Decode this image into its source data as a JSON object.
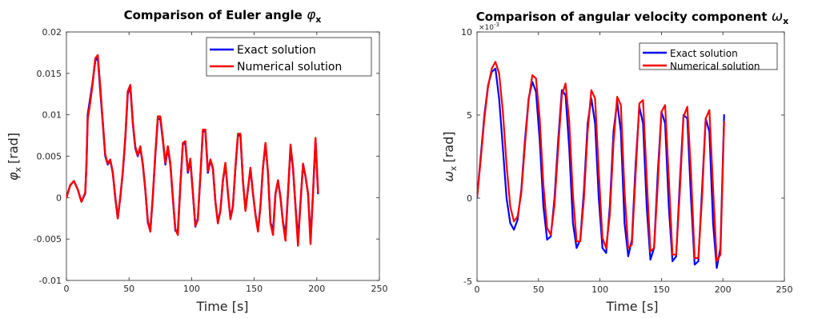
{
  "chart_data": [
    {
      "type": "line",
      "title": "Comparison of Euler angle",
      "title_symbol": "φ",
      "title_sub": "x",
      "xlabel": "Time [s]",
      "ylabel": "[rad]",
      "ylabel_symbol": "φ",
      "ylabel_sub": "x",
      "xlim": [
        0,
        250
      ],
      "ylim": [
        -0.01,
        0.02
      ],
      "xticks": [
        0,
        50,
        100,
        150,
        200,
        250
      ],
      "xtick_labels": [
        "0",
        "50",
        "100",
        "150",
        "200",
        "250"
      ],
      "yticks": [
        -0.01,
        -0.005,
        0,
        0.005,
        0.01,
        0.015,
        0.02
      ],
      "ytick_labels": [
        "-0.01",
        "-0.005",
        "0",
        "0.005",
        "0.01",
        "0.015",
        "0.02"
      ],
      "legend_position": "top-right",
      "series": [
        {
          "name": "Exact solution",
          "color": "#0000ff",
          "x": [
            0,
            3,
            6,
            9,
            12,
            15,
            16,
            17,
            19,
            21,
            23,
            25,
            27,
            29,
            31,
            33,
            35,
            37,
            39,
            41,
            43,
            45,
            47,
            49,
            51,
            53,
            55,
            57,
            59,
            61,
            63,
            65,
            67,
            69,
            71,
            73,
            75,
            77,
            79,
            81,
            83,
            85,
            87,
            89,
            91,
            93,
            95,
            97,
            99,
            101,
            103,
            105,
            107,
            109,
            111,
            113,
            115,
            117,
            119,
            121,
            123,
            125,
            127,
            129,
            131,
            133,
            135,
            137,
            139,
            141,
            143,
            145,
            147,
            149,
            151,
            153,
            155,
            157,
            159,
            161,
            163,
            165,
            167,
            169,
            171,
            173,
            175,
            177,
            179,
            181,
            183,
            185,
            187,
            189,
            191,
            193,
            195,
            197,
            199,
            201
          ],
          "y": [
            0,
            0.0015,
            0.002,
            0.001,
            -0.0005,
            0.0005,
            0.004,
            0.01,
            0.012,
            0.014,
            0.0165,
            0.017,
            0.013,
            0.009,
            0.005,
            0.004,
            0.0045,
            0.003,
            0.0,
            -0.0025,
            0.0,
            0.003,
            0.007,
            0.0125,
            0.0135,
            0.009,
            0.006,
            0.005,
            0.006,
            0.004,
            0.001,
            -0.003,
            -0.004,
            0.0,
            0.005,
            0.0095,
            0.0095,
            0.007,
            0.004,
            0.006,
            0.004,
            0.0,
            -0.004,
            -0.004,
            0.0015,
            0.0065,
            0.0065,
            0.003,
            0.0045,
            0.0005,
            -0.0035,
            -0.0025,
            0.0025,
            0.008,
            0.008,
            0.003,
            0.0045,
            0.0035,
            -0.0005,
            -0.003,
            -0.0015,
            0.002,
            0.004,
            0.0005,
            -0.0025,
            -0.001,
            0.0035,
            0.0075,
            0.0075,
            0.002,
            -0.0015,
            0.001,
            0.0035,
            0.0005,
            -0.002,
            -0.004,
            -0.001,
            0.0035,
            0.0065,
            0.003,
            -0.003,
            -0.004,
            0.0005,
            0.002,
            0.0,
            -0.003,
            -0.0045,
            0.0005,
            0.006,
            0.0035,
            -0.001,
            -0.005,
            -0.0005,
            0.004,
            0.0025,
            0.0005,
            -0.005,
            0.0005,
            0.007,
            0.0005
          ]
        },
        {
          "name": "Numerical solution",
          "color": "#ff0000",
          "x": [
            0,
            3,
            6,
            9,
            12,
            15,
            16,
            17,
            19,
            21,
            23,
            25,
            27,
            29,
            31,
            33,
            35,
            37,
            39,
            41,
            43,
            45,
            47,
            49,
            51,
            53,
            55,
            57,
            59,
            61,
            63,
            65,
            67,
            69,
            71,
            73,
            75,
            77,
            79,
            81,
            83,
            85,
            87,
            89,
            91,
            93,
            95,
            97,
            99,
            101,
            103,
            105,
            107,
            109,
            111,
            113,
            115,
            117,
            119,
            121,
            123,
            125,
            127,
            129,
            131,
            133,
            135,
            137,
            139,
            141,
            143,
            145,
            147,
            149,
            151,
            153,
            155,
            157,
            159,
            161,
            163,
            165,
            167,
            169,
            171,
            173,
            175,
            177,
            179,
            181,
            183,
            185,
            187,
            189,
            191,
            193,
            195,
            197,
            199,
            201
          ],
          "y": [
            0,
            0.0015,
            0.002,
            0.001,
            -0.0005,
            0.0006,
            0.0038,
            0.0095,
            0.0115,
            0.0138,
            0.0168,
            0.0172,
            0.0135,
            0.0092,
            0.0052,
            0.0041,
            0.0046,
            0.0031,
            0.0001,
            -0.0025,
            0.0001,
            0.0031,
            0.0072,
            0.0128,
            0.0136,
            0.0092,
            0.0062,
            0.0051,
            0.0062,
            0.0041,
            0.0011,
            -0.0028,
            -0.0041,
            0.0002,
            0.0052,
            0.0098,
            0.0098,
            0.0072,
            0.0042,
            0.0062,
            0.0042,
            0.0002,
            -0.0038,
            -0.0045,
            0.0013,
            0.0066,
            0.0068,
            0.0032,
            0.0047,
            0.0006,
            -0.0034,
            -0.0027,
            0.0026,
            0.0082,
            0.0082,
            0.0032,
            0.0046,
            0.0036,
            -0.0004,
            -0.0031,
            -0.0016,
            0.0021,
            0.0042,
            0.0006,
            -0.0026,
            -0.0011,
            0.0036,
            0.0077,
            0.0077,
            0.0021,
            -0.0016,
            0.0011,
            0.0036,
            0.0006,
            -0.0021,
            -0.0041,
            -0.0011,
            0.0036,
            0.0066,
            0.0031,
            -0.0031,
            -0.0045,
            0.0004,
            0.0021,
            0.0001,
            -0.0031,
            -0.0052,
            0.0004,
            0.0064,
            0.0036,
            -0.0011,
            -0.0058,
            -0.0006,
            0.0041,
            0.0026,
            0.0004,
            -0.0056,
            0.0006,
            0.0072,
            0.0006
          ]
        }
      ]
    },
    {
      "type": "line",
      "title": "Comparison of angular velocity component",
      "title_symbol": "ω",
      "title_sub": "x",
      "xlabel": "Time [s]",
      "ylabel": "[rad]",
      "ylabel_symbol": "ω",
      "ylabel_sub": "x",
      "xlim": [
        0,
        250
      ],
      "ylim": [
        -5,
        10
      ],
      "y_exponent_label": "×10",
      "y_exponent": "-3",
      "xticks": [
        0,
        50,
        100,
        150,
        200,
        250
      ],
      "xtick_labels": [
        "0",
        "50",
        "100",
        "150",
        "200",
        "250"
      ],
      "yticks": [
        -5,
        0,
        5,
        10
      ],
      "ytick_labels": [
        "-5",
        "0",
        "5",
        "10"
      ],
      "legend_position": "top-right",
      "series": [
        {
          "name": "Exact solution",
          "color": "#0000ff",
          "x": [
            0,
            3,
            6,
            9,
            12,
            15,
            18,
            21,
            24,
            27,
            30,
            33,
            36,
            39,
            42,
            45,
            48,
            51,
            54,
            57,
            60,
            63,
            66,
            69,
            72,
            75,
            78,
            81,
            84,
            87,
            90,
            93,
            96,
            99,
            102,
            105,
            108,
            111,
            114,
            117,
            120,
            123,
            126,
            129,
            132,
            135,
            138,
            141,
            144,
            147,
            150,
            153,
            156,
            159,
            162,
            165,
            168,
            171,
            174,
            177,
            180,
            183,
            186,
            189,
            192,
            195,
            198,
            201
          ],
          "y": [
            0,
            2.5,
            5.0,
            6.8,
            7.6,
            7.8,
            6.0,
            3.0,
            0.0,
            -1.5,
            -1.9,
            -1.3,
            0.5,
            3.5,
            6.0,
            7.0,
            6.4,
            3.5,
            -0.5,
            -2.5,
            -2.3,
            0.0,
            3.5,
            6.5,
            6.2,
            3.0,
            -1.5,
            -3.0,
            -2.5,
            0.5,
            4.5,
            6.0,
            4.5,
            0.0,
            -3.0,
            -3.3,
            -0.5,
            4.0,
            5.8,
            4.0,
            -1.5,
            -3.5,
            -2.5,
            2.0,
            5.5,
            4.5,
            -0.5,
            -3.7,
            -3.0,
            1.5,
            5.2,
            4.5,
            -0.5,
            -3.8,
            -3.5,
            1.0,
            5.0,
            4.8,
            0.0,
            -4.0,
            -3.8,
            0.5,
            4.8,
            4.0,
            -1.5,
            -4.2,
            -3.0,
            5.0
          ]
        },
        {
          "name": "Numerical solution",
          "color": "#ff0000",
          "x": [
            0,
            3,
            6,
            9,
            12,
            15,
            18,
            21,
            24,
            27,
            30,
            33,
            36,
            39,
            42,
            45,
            48,
            51,
            54,
            57,
            60,
            63,
            66,
            69,
            72,
            75,
            78,
            81,
            84,
            87,
            90,
            93,
            96,
            99,
            102,
            105,
            108,
            111,
            114,
            117,
            120,
            123,
            126,
            129,
            132,
            135,
            138,
            141,
            144,
            147,
            150,
            153,
            156,
            159,
            162,
            165,
            168,
            171,
            174,
            177,
            180,
            183,
            186,
            189,
            192,
            195,
            198,
            201
          ],
          "y": [
            0,
            2.3,
            4.8,
            6.7,
            7.8,
            8.2,
            7.5,
            5.2,
            2.0,
            -0.5,
            -1.4,
            -1.1,
            0.3,
            3.2,
            5.9,
            7.4,
            7.2,
            4.8,
            0.8,
            -1.8,
            -2.2,
            -0.4,
            3.0,
            6.2,
            6.9,
            4.6,
            0.2,
            -2.6,
            -2.6,
            0.0,
            4.0,
            6.5,
            6.0,
            1.6,
            -2.4,
            -3.0,
            -1.0,
            3.3,
            6.1,
            5.6,
            0.4,
            -3.0,
            -2.8,
            1.4,
            5.7,
            5.9,
            1.2,
            -3.2,
            -3.0,
            0.8,
            5.2,
            5.6,
            1.2,
            -3.4,
            -3.4,
            0.4,
            4.9,
            5.5,
            1.6,
            -3.6,
            -3.6,
            0.0,
            4.8,
            5.3,
            0.6,
            -3.8,
            -3.4,
            4.6
          ]
        }
      ]
    }
  ]
}
